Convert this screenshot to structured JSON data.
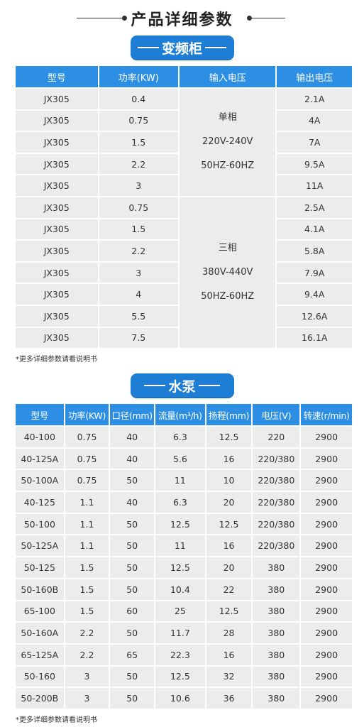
{
  "page": {
    "title": "产品详细参数"
  },
  "inverter": {
    "section_label": "变频柜",
    "headers": [
      "型号",
      "功率(KW)",
      "输入电压",
      "输出电压"
    ],
    "group_single": {
      "line1": "单相",
      "line2": "220V-240V",
      "line3": "50HZ-60HZ"
    },
    "group_three": {
      "line1": "三相",
      "line2": "380V-440V",
      "line3": "50HZ-60HZ"
    },
    "rows": [
      {
        "model": "JX305",
        "power": "0.4",
        "output": "2.1A"
      },
      {
        "model": "JX305",
        "power": "0.75",
        "output": "4A"
      },
      {
        "model": "JX305",
        "power": "1.5",
        "output": "7A"
      },
      {
        "model": "JX305",
        "power": "2.2",
        "output": "9.5A"
      },
      {
        "model": "JX305",
        "power": "3",
        "output": "11A"
      },
      {
        "model": "JX305",
        "power": "0.75",
        "output": "2.5A"
      },
      {
        "model": "JX305",
        "power": "1.5",
        "output": "4.1A"
      },
      {
        "model": "JX305",
        "power": "2.2",
        "output": "5.8A"
      },
      {
        "model": "JX305",
        "power": "3",
        "output": "7.9A"
      },
      {
        "model": "JX305",
        "power": "4",
        "output": "9.4A"
      },
      {
        "model": "JX305",
        "power": "5.5",
        "output": "12.6A"
      },
      {
        "model": "JX305",
        "power": "7.5",
        "output": "16.1A"
      }
    ],
    "note": "*更多详细参数请看说明书"
  },
  "pump": {
    "section_label": "水泵",
    "headers": [
      "型号",
      "功率(KW)",
      "口径(mm)",
      "流量(m³/h)",
      "扬程(mm)",
      "电压(V)",
      "转速(r/min)"
    ],
    "rows": [
      [
        "40-100",
        "0.75",
        "40",
        "6.3",
        "12.5",
        "220",
        "2900"
      ],
      [
        "40-125A",
        "0.75",
        "40",
        "5.6",
        "16",
        "220/380",
        "2900"
      ],
      [
        "50-100A",
        "0.75",
        "50",
        "11",
        "10",
        "220/380",
        "2900"
      ],
      [
        "40-125",
        "1.1",
        "40",
        "6.3",
        "20",
        "220/380",
        "2900"
      ],
      [
        "50-100",
        "1.1",
        "50",
        "12.5",
        "12.5",
        "220/380",
        "2900"
      ],
      [
        "50-125A",
        "1.1",
        "50",
        "11",
        "16",
        "220/380",
        "2900"
      ],
      [
        "50-125",
        "1.5",
        "50",
        "12.5",
        "20",
        "380",
        "2900"
      ],
      [
        "50-160B",
        "1.5",
        "50",
        "10.4",
        "22",
        "380",
        "2900"
      ],
      [
        "65-100",
        "1.5",
        "60",
        "25",
        "12.5",
        "380",
        "2900"
      ],
      [
        "50-160A",
        "2.2",
        "50",
        "11.7",
        "28",
        "380",
        "2900"
      ],
      [
        "65-125A",
        "2.2",
        "65",
        "22.3",
        "16",
        "380",
        "2900"
      ],
      [
        "50-160",
        "3",
        "50",
        "12.5",
        "32",
        "380",
        "2900"
      ],
      [
        "50-200B",
        "3",
        "50",
        "10.6",
        "36",
        "380",
        "2900"
      ]
    ],
    "note": "*更多详细参数请看说明书"
  }
}
